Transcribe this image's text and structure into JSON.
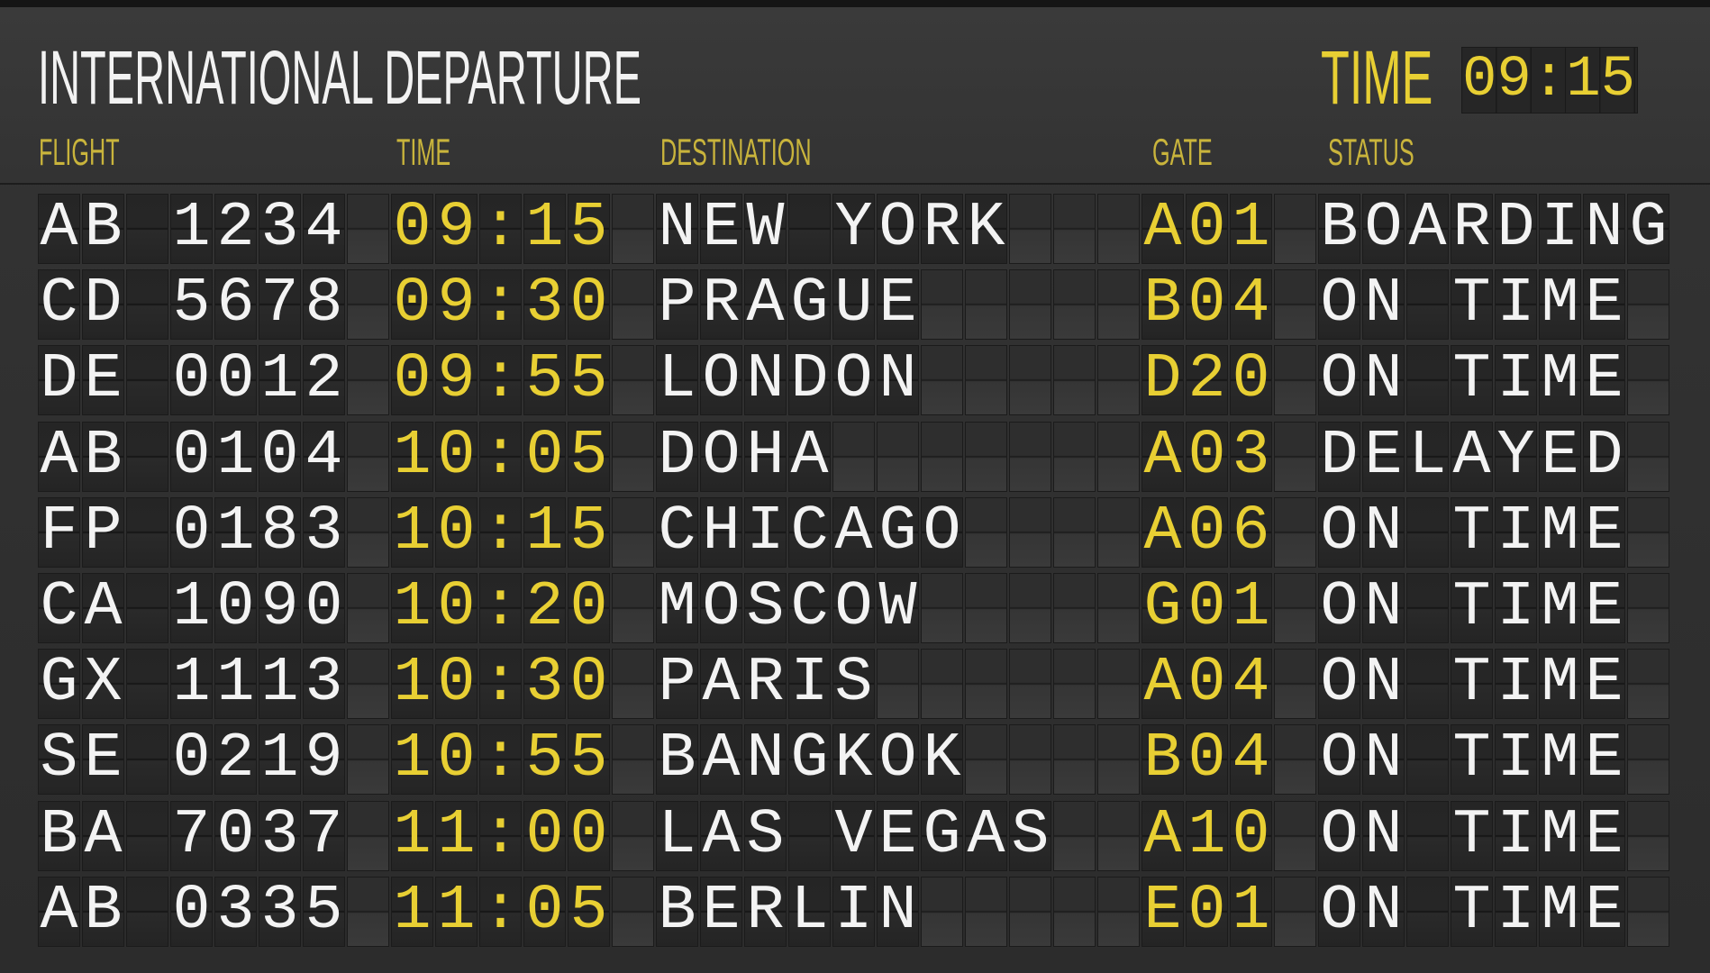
{
  "header": {
    "title": "INTERNATIONAL DEPARTURE",
    "clock_label": "TIME",
    "clock_value": "09:15"
  },
  "columns": {
    "flight": "FLIGHT",
    "time": "TIME",
    "destination": "DESTINATION",
    "gate": "GATE",
    "status": "STATUS"
  },
  "colors": {
    "accent": "#e8cf33",
    "text": "#f3f3f3",
    "background": "#303030"
  },
  "flights": [
    {
      "flight": "AB 1234",
      "time": "09:15",
      "destination": "NEW YORK",
      "gate": "A01",
      "status": "BOARDING"
    },
    {
      "flight": "CD 5678",
      "time": "09:30",
      "destination": "PRAGUE",
      "gate": "B04",
      "status": "ON TIME"
    },
    {
      "flight": "DE 0012",
      "time": "09:55",
      "destination": "LONDON",
      "gate": "D20",
      "status": "ON TIME"
    },
    {
      "flight": "AB 0104",
      "time": "10:05",
      "destination": "DOHA",
      "gate": "A03",
      "status": "DELAYED"
    },
    {
      "flight": "FP 0183",
      "time": "10:15",
      "destination": "CHICAGO",
      "gate": "A06",
      "status": "ON TIME"
    },
    {
      "flight": "CA 1090",
      "time": "10:20",
      "destination": "MOSCOW",
      "gate": "G01",
      "status": "ON TIME"
    },
    {
      "flight": "GX 1113",
      "time": "10:30",
      "destination": "PARIS",
      "gate": "A04",
      "status": "ON TIME"
    },
    {
      "flight": "SE 0219",
      "time": "10:55",
      "destination": "BANGKOK",
      "gate": "B04",
      "status": "ON TIME"
    },
    {
      "flight": "BA 7037",
      "time": "11:00",
      "destination": "LAS VEGAS",
      "gate": "A10",
      "status": "ON TIME"
    },
    {
      "flight": "AB 0335",
      "time": "11:05",
      "destination": "BERLIN",
      "gate": "E01",
      "status": "ON TIME"
    }
  ]
}
